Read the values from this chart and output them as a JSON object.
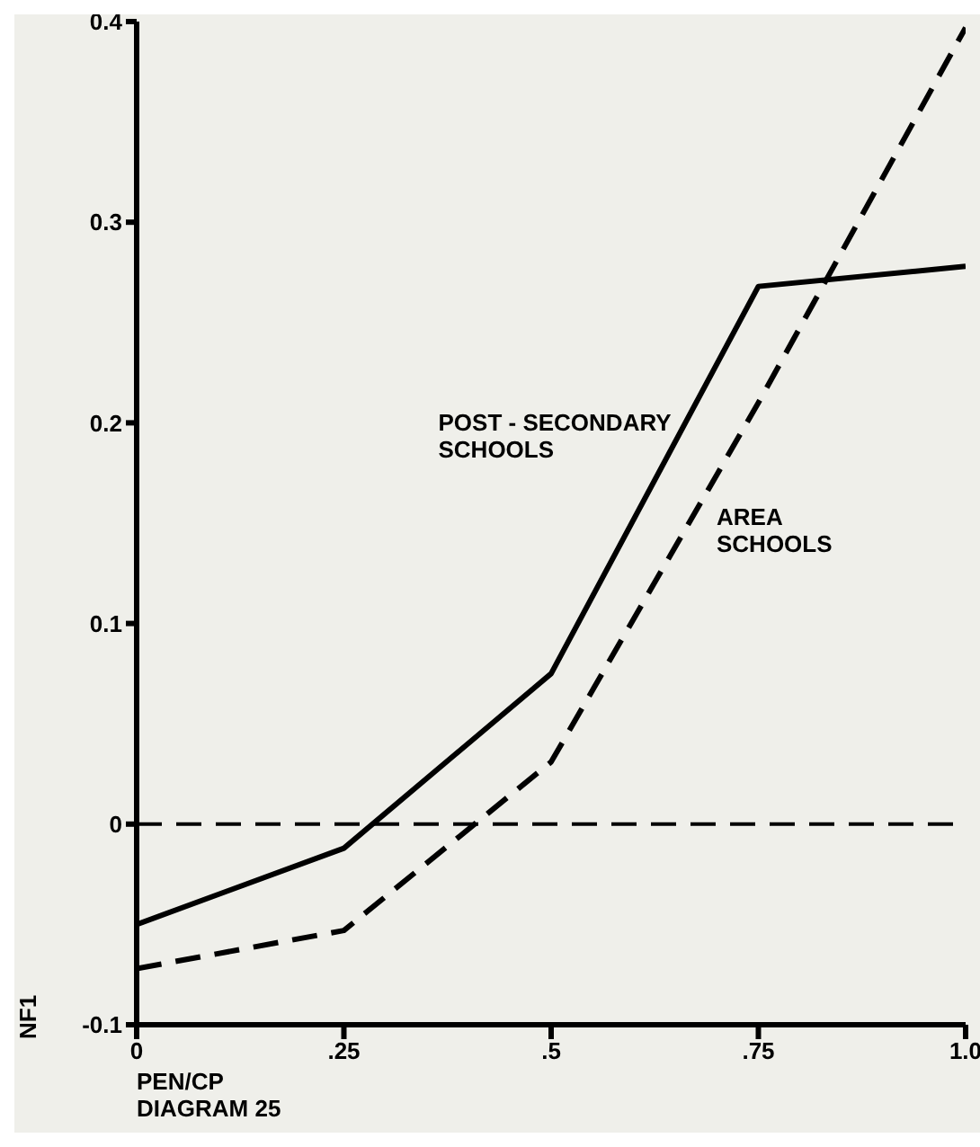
{
  "chart_data": {
    "type": "line",
    "xlabel": "PEN/CP",
    "ylabel": "NF1",
    "annotations": [
      "DIAGRAM 25"
    ],
    "x": [
      0,
      0.25,
      0.5,
      0.75,
      1.0
    ],
    "series": [
      {
        "name": "POST - SECONDARY SCHOOLS",
        "color": "#000000",
        "line_style": "solid",
        "values": [
          -0.05,
          -0.012,
          0.075,
          0.268,
          0.278
        ]
      },
      {
        "name": "AREA SCHOOLS",
        "color": "#000000",
        "line_style": "dashed",
        "values": [
          -0.072,
          -0.053,
          0.031,
          0.21,
          0.397
        ]
      }
    ],
    "xlim": [
      0,
      1.0
    ],
    "xticks": [
      0,
      {
        "value": 0.25,
        "label": ".25"
      },
      {
        "value": 0.5,
        "label": ".5"
      },
      {
        "value": 0.75,
        "label": ".75"
      },
      {
        "value": 1.0,
        "label": "1.0"
      }
    ],
    "ylim": [
      -0.1,
      0.4
    ],
    "yticks": [
      {
        "value": -0.1,
        "label": "-0.1"
      },
      0,
      {
        "value": 0.1,
        "label": "0.1"
      },
      {
        "value": 0.2,
        "label": "0.2"
      },
      {
        "value": 0.3,
        "label": "0.3"
      },
      {
        "value": 0.4,
        "label": "0.4"
      }
    ],
    "ref_lines": [
      {
        "axis": "y",
        "value": 0,
        "line_style": "dashed"
      }
    ],
    "grid": false,
    "legend": false,
    "marker": "none"
  }
}
